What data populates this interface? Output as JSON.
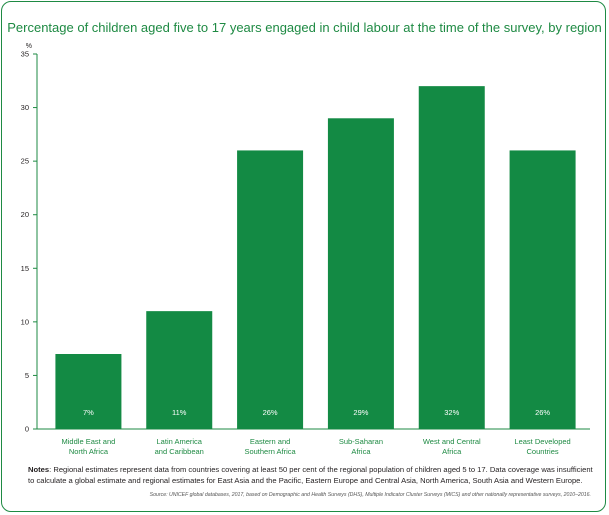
{
  "chart_data": {
    "type": "bar",
    "title": "Percentage of children aged five to 17 years engaged in child labour at the time of the survey, by region",
    "ylabel": "%",
    "ylim": [
      0,
      35
    ],
    "yticks": [
      "0",
      "5",
      "10",
      "15",
      "20",
      "25",
      "30",
      "35"
    ],
    "grid": false,
    "categories": [
      [
        "Middle East and",
        "North Africa"
      ],
      [
        "Latin America",
        "and Caribbean"
      ],
      [
        "Eastern and",
        "Southern Africa"
      ],
      [
        "Sub-Saharan",
        "Africa"
      ],
      [
        "West and Central",
        "Africa"
      ],
      [
        "Least Developed",
        "Countries"
      ]
    ],
    "values": [
      7,
      11,
      26,
      29,
      32,
      26
    ],
    "data_labels": [
      "7%",
      "11%",
      "26%",
      "29%",
      "32%",
      "26%"
    ]
  },
  "colors": {
    "bar": "#138a44",
    "accent_text": "#1e8a43",
    "axis": "#1e8a43",
    "bar_label": "#ffffff"
  },
  "notes_label": "Notes",
  "notes_text": ": Regional estimates represent data from countries covering at least 50 per cent of the regional population of children aged 5 to 17. Data coverage was insufficient to calculate a global estimate and regional estimates for East Asia and the Pacific, Eastern Europe and Central Asia, North America, South Asia and Western Europe.",
  "source": "Source: UNICEF global databases, 2017, based on Demographic and Health Surveys (DHS), Multiple Indicator Cluster Surveys (MICS) and other nationally representative surveys, 2010–2016."
}
